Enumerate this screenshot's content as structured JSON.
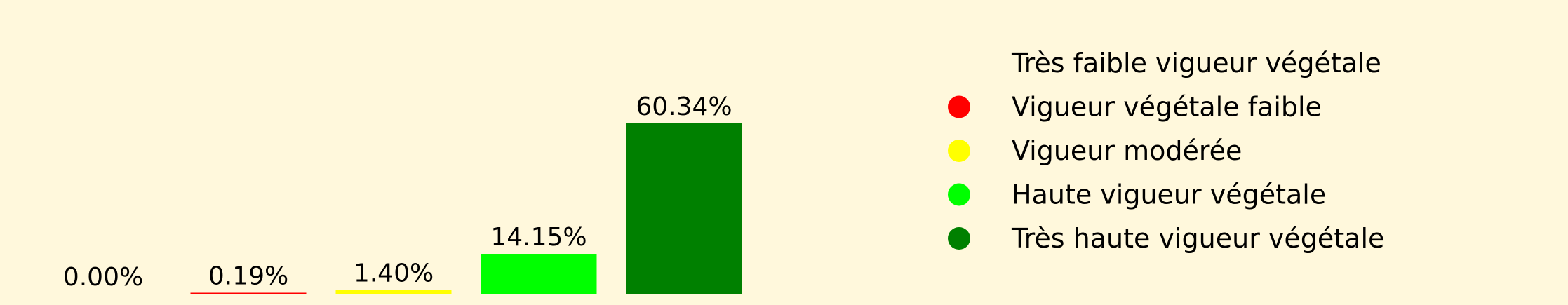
{
  "chart_data": {
    "type": "bar",
    "categories": [
      "Très faible vigueur végétale",
      "Vigueur végétale faible",
      "Vigueur modérée",
      "Haute vigueur végétale",
      "Très haute vigueur végétale"
    ],
    "values": [
      0.0,
      0.19,
      1.4,
      14.15,
      60.34
    ],
    "data_labels": [
      "0.00%",
      "0.19%",
      "1.40%",
      "14.15%",
      "60.34%"
    ],
    "colors": [
      "#fff8dc",
      "#ff0000",
      "#ffff00",
      "#00ff00",
      "#008000"
    ],
    "unit": "%",
    "ylim": [
      0,
      60.34
    ],
    "title": "",
    "xlabel": "",
    "ylabel": "",
    "grid": false,
    "legend_position": "right"
  },
  "legend": {
    "items": [
      {
        "label": "Très faible vigueur végétale",
        "color": "#fff8dc"
      },
      {
        "label": "Vigueur végétale faible",
        "color": "#ff0000"
      },
      {
        "label": "Vigueur modérée",
        "color": "#ffff00"
      },
      {
        "label": "Haute vigueur végétale",
        "color": "#00ff00"
      },
      {
        "label": "Très haute vigueur végétale",
        "color": "#008000"
      }
    ]
  }
}
